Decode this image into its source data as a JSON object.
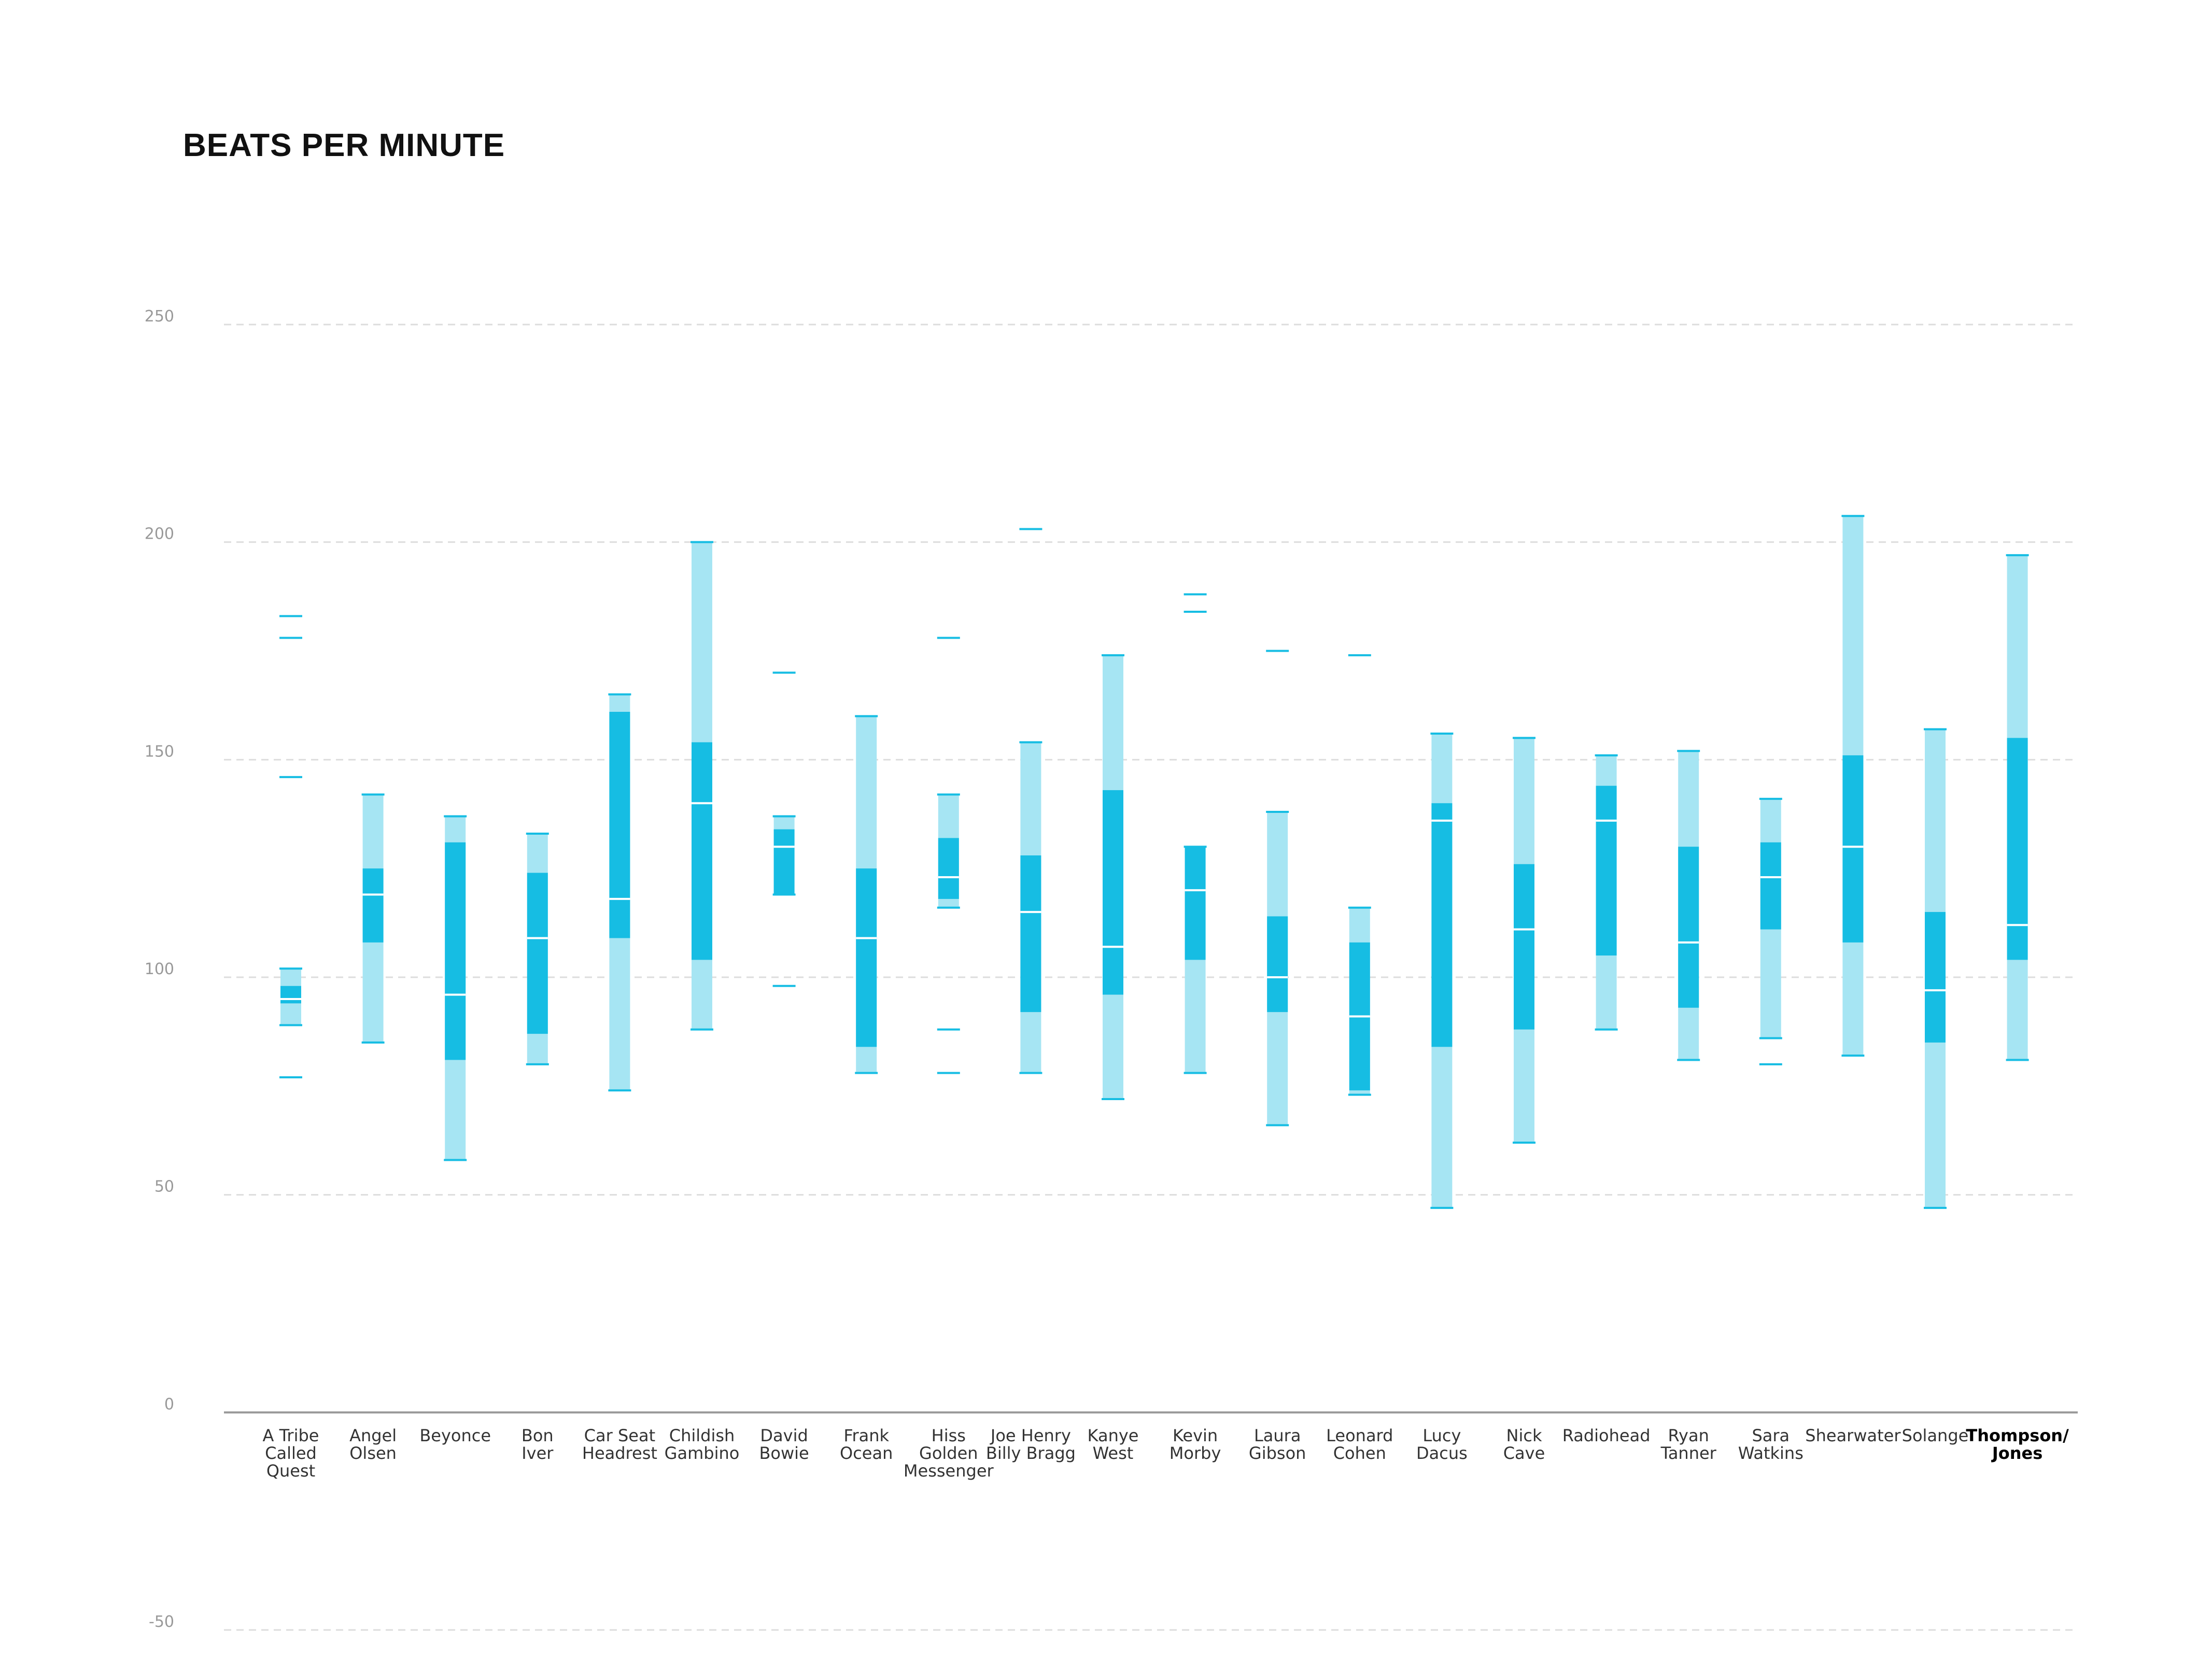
{
  "chart_data": {
    "type": "box",
    "title": "BEATS PER MINUTE",
    "xlabel": "",
    "ylabel": "",
    "ylim": [
      -50,
      250
    ],
    "yticks": [
      250,
      200,
      150,
      100,
      50,
      0,
      -50
    ],
    "grid": true,
    "colors": {
      "whisker": "#a6e5f3",
      "box": "#16bde3",
      "marker": "#16bde3",
      "median": "#ffffff",
      "axis": "#999999",
      "grid": "#dddddd"
    },
    "categories": [
      {
        "label": [
          "A Tribe",
          "Called",
          "Quest"
        ],
        "min": 89,
        "q1": 94,
        "median": 95,
        "q3": 98,
        "max": 102,
        "outliers": [
          183,
          178,
          146,
          77
        ]
      },
      {
        "label": [
          "Angel",
          "Olsen"
        ],
        "min": 85,
        "q1": 108,
        "median": 119,
        "q3": 125,
        "max": 142,
        "outliers": []
      },
      {
        "label": [
          "Beyonce"
        ],
        "min": 58,
        "q1": 81,
        "median": 96,
        "q3": 131,
        "max": 137,
        "outliers": []
      },
      {
        "label": [
          "Bon",
          "Iver"
        ],
        "min": 80,
        "q1": 87,
        "median": 109,
        "q3": 124,
        "max": 133,
        "outliers": []
      },
      {
        "label": [
          "Car Seat",
          "Headrest"
        ],
        "min": 74,
        "q1": 109,
        "median": 118,
        "q3": 161,
        "max": 165,
        "outliers": []
      },
      {
        "label": [
          "Childish",
          "Gambino"
        ],
        "min": 88,
        "q1": 104,
        "median": 140,
        "q3": 154,
        "max": 200,
        "outliers": []
      },
      {
        "label": [
          "David",
          "Bowie"
        ],
        "min": 119,
        "q1": 119,
        "median": 130,
        "q3": 134,
        "max": 137,
        "outliers": [
          170,
          98
        ]
      },
      {
        "label": [
          "Frank",
          "Ocean"
        ],
        "min": 78,
        "q1": 84,
        "median": 109,
        "q3": 125,
        "max": 160,
        "outliers": []
      },
      {
        "label": [
          "Hiss",
          "Golden",
          "Messenger"
        ],
        "min": 116,
        "q1": 118,
        "median": 123,
        "q3": 132,
        "max": 142,
        "outliers": [
          178,
          88,
          78
        ]
      },
      {
        "label": [
          "Joe Henry",
          "Billy Bragg"
        ],
        "min": 78,
        "q1": 92,
        "median": 115,
        "q3": 128,
        "max": 154,
        "outliers": [
          203
        ]
      },
      {
        "label": [
          "Kanye",
          "West"
        ],
        "min": 72,
        "q1": 96,
        "median": 107,
        "q3": 143,
        "max": 174,
        "outliers": []
      },
      {
        "label": [
          "Kevin",
          "Morby"
        ],
        "min": 78,
        "q1": 104,
        "median": 120,
        "q3": 130,
        "max": 130,
        "outliers": [
          188,
          184
        ]
      },
      {
        "label": [
          "Laura",
          "Gibson"
        ],
        "min": 66,
        "q1": 92,
        "median": 100,
        "q3": 114,
        "max": 138,
        "outliers": [
          175
        ]
      },
      {
        "label": [
          "Leonard",
          "Cohen"
        ],
        "min": 73,
        "q1": 74,
        "median": 91,
        "q3": 108,
        "max": 116,
        "outliers": [
          174
        ]
      },
      {
        "label": [
          "Lucy",
          "Dacus"
        ],
        "min": 47,
        "q1": 84,
        "median": 136,
        "q3": 140,
        "max": 156,
        "outliers": []
      },
      {
        "label": [
          "Nick",
          "Cave"
        ],
        "min": 62,
        "q1": 88,
        "median": 111,
        "q3": 126,
        "max": 155,
        "outliers": []
      },
      {
        "label": [
          "Radiohead"
        ],
        "min": 88,
        "q1": 105,
        "median": 136,
        "q3": 144,
        "max": 151,
        "outliers": []
      },
      {
        "label": [
          "Ryan",
          "Tanner"
        ],
        "min": 81,
        "q1": 93,
        "median": 108,
        "q3": 130,
        "max": 152,
        "outliers": []
      },
      {
        "label": [
          "Sara",
          "Watkins"
        ],
        "min": 86,
        "q1": 111,
        "median": 123,
        "q3": 131,
        "max": 141,
        "outliers": [
          80
        ]
      },
      {
        "label": [
          "Shearwater"
        ],
        "min": 82,
        "q1": 108,
        "median": 130,
        "q3": 151,
        "max": 206,
        "outliers": []
      },
      {
        "label": [
          "Solange"
        ],
        "min": 47,
        "q1": 85,
        "median": 97,
        "q3": 115,
        "max": 157,
        "outliers": []
      },
      {
        "label": [
          "Thompson/",
          "Jones"
        ],
        "min": 81,
        "q1": 104,
        "median": 112,
        "q3": 155,
        "max": 197,
        "outliers": [],
        "highlight": true
      }
    ]
  }
}
